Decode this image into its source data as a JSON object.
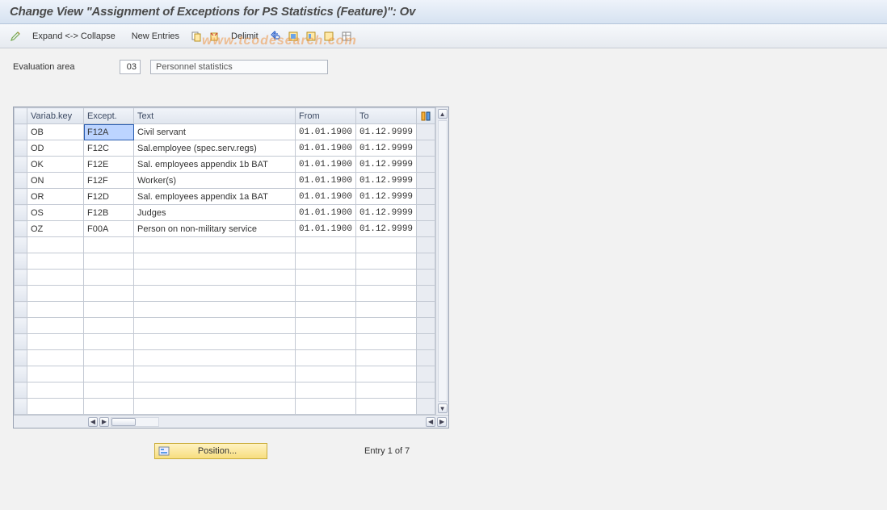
{
  "title": "Change View \"Assignment of Exceptions for PS Statistics (Feature)\": Ov",
  "watermark": "www.tcodesearch.com",
  "toolbar": {
    "expand_collapse": "Expand <-> Collapse",
    "new_entries": "New Entries",
    "delimit": "Delimit",
    "icon_names": [
      "pencil-icon",
      "copy-icon",
      "trash-icon",
      "delimit-icon",
      "undo-icon",
      "select-all-icon",
      "deselect-all-icon",
      "table-settings-icon",
      "print-icon"
    ]
  },
  "evaluation": {
    "label": "Evaluation area",
    "code": "03",
    "desc": "Personnel statistics"
  },
  "grid": {
    "columns": {
      "variab_key": "Variab.key",
      "except": "Except.",
      "text": "Text",
      "from": "From",
      "to": "To"
    },
    "rows": [
      {
        "varkey": "OB",
        "except": "F12A",
        "text": "Civil servant",
        "from": "01.01.1900",
        "to": "01.12.9999",
        "selected": true
      },
      {
        "varkey": "OD",
        "except": "F12C",
        "text": "Sal.employee (spec.serv.regs)",
        "from": "01.01.1900",
        "to": "01.12.9999"
      },
      {
        "varkey": "OK",
        "except": "F12E",
        "text": "Sal. employees appendix 1b BAT",
        "from": "01.01.1900",
        "to": "01.12.9999"
      },
      {
        "varkey": "ON",
        "except": "F12F",
        "text": "Worker(s)",
        "from": "01.01.1900",
        "to": "01.12.9999"
      },
      {
        "varkey": "OR",
        "except": "F12D",
        "text": "Sal. employees appendix 1a BAT",
        "from": "01.01.1900",
        "to": "01.12.9999"
      },
      {
        "varkey": "OS",
        "except": "F12B",
        "text": "Judges",
        "from": "01.01.1900",
        "to": "01.12.9999"
      },
      {
        "varkey": "OZ",
        "except": "F00A",
        "text": "Person on non-military service",
        "from": "01.01.1900",
        "to": "01.12.9999"
      }
    ],
    "empty_rows": 11,
    "colors": {
      "header_bg_top": "#f1f4f9",
      "header_bg_bottom": "#dfe5ee",
      "border": "#c3c9d3",
      "selection_bg": "#bcd4ff"
    }
  },
  "footer": {
    "position_button": "Position...",
    "entry_text": "Entry 1 of 7"
  }
}
